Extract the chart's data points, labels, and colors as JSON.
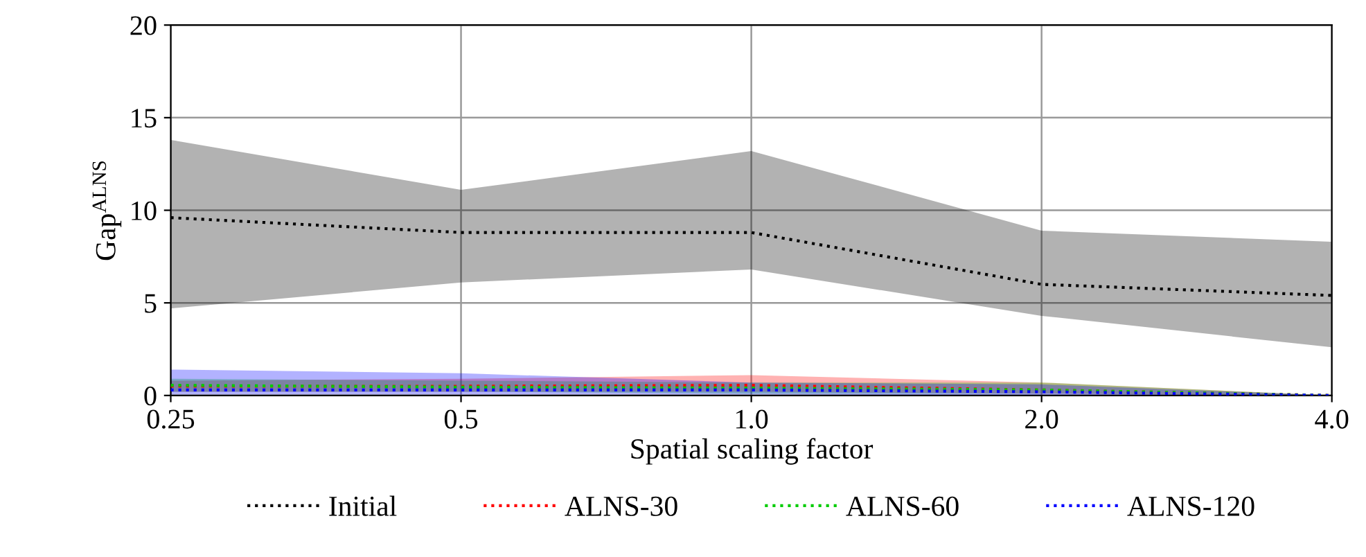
{
  "chart_data": {
    "type": "line",
    "xlabel": "Spatial scaling factor",
    "ylabel": "Gap$^{ALNS}$",
    "categories": [
      "0.25",
      "0.5",
      "1.0",
      "2.0",
      "4.0"
    ],
    "ylim": [
      0,
      20
    ],
    "yticks": [
      0,
      5,
      10,
      15,
      20
    ],
    "grid": true,
    "legend": "bottom",
    "line_style": "dotted",
    "marker": "none",
    "series": [
      {
        "name": "Initial",
        "color": "#000000",
        "values": [
          9.6,
          8.8,
          8.8,
          6.0,
          5.4
        ],
        "lower": [
          4.7,
          6.1,
          6.8,
          4.3,
          2.6
        ],
        "upper": [
          13.8,
          11.1,
          13.2,
          8.9,
          8.3
        ]
      },
      {
        "name": "ALNS-30",
        "color": "#ff0000",
        "values": [
          0.5,
          0.5,
          0.55,
          0.3,
          0
        ],
        "lower": [
          0.2,
          0.2,
          0.2,
          0.1,
          0
        ],
        "upper": [
          0.8,
          0.9,
          1.1,
          0.7,
          0
        ]
      },
      {
        "name": "ALNS-60",
        "color": "#00cc00",
        "values": [
          0.55,
          0.45,
          0.4,
          0.3,
          0
        ],
        "lower": [
          0.2,
          0.2,
          0.1,
          0.1,
          0
        ],
        "upper": [
          0.9,
          0.8,
          0.7,
          0.7,
          0
        ]
      },
      {
        "name": "ALNS-120",
        "color": "#0000ff",
        "values": [
          0.3,
          0.3,
          0.3,
          0.2,
          0
        ],
        "lower": [
          0.05,
          0.05,
          0.05,
          0,
          0
        ],
        "upper": [
          1.4,
          1.2,
          0.7,
          0.6,
          0
        ]
      }
    ]
  }
}
